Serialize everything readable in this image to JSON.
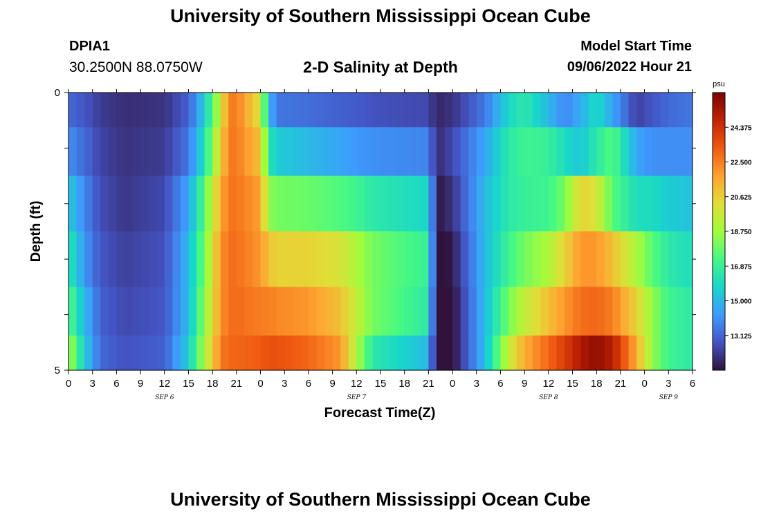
{
  "header": {
    "title": "University of Southern Mississippi Ocean Cube",
    "title_repeat": "University of Southern Mississippi Ocean Cube",
    "station": "DPIA1",
    "coords": "30.2500N  88.0750W",
    "subtitle": "2-D Salinity at Depth",
    "model_start_label": "Model Start Time",
    "model_start_value": "09/06/2022 Hour 21"
  },
  "chart_data": {
    "type": "heatmap",
    "title": "2-D Salinity at Depth",
    "xlabel": "Forecast Time(Z)",
    "ylabel": "Depth (ft)",
    "x_hours_from_start": [
      0,
      78
    ],
    "x_tick_labels": [
      "0",
      "3",
      "6",
      "9",
      "12",
      "15",
      "18",
      "21",
      "0",
      "3",
      "6",
      "9",
      "12",
      "15",
      "18",
      "21",
      "0",
      "3",
      "6",
      "9",
      "12",
      "15",
      "18",
      "21",
      "0",
      "3",
      "6"
    ],
    "date_labels": [
      {
        "text": "SEP 6",
        "hour": 12
      },
      {
        "text": "SEP 7",
        "hour": 36
      },
      {
        "text": "SEP 8",
        "hour": 60
      },
      {
        "text": "SEP 9",
        "hour": 75
      }
    ],
    "y_tick_labels": [
      "0",
      "5"
    ],
    "ylim": [
      0,
      5
    ],
    "depth_rows": [
      0.25,
      1.0,
      2.0,
      3.0,
      4.0,
      4.75
    ],
    "colorbar": {
      "unit": "psu",
      "min": 11.25,
      "max": 26.25,
      "tick_labels": [
        "24.375",
        "22.500",
        "20.625",
        "18.750",
        "16.875",
        "15.000",
        "13.125"
      ],
      "colors": [
        "#30123b",
        "#4454c4",
        "#3e9bfe",
        "#18d6cb",
        "#46f884",
        "#a2fc3c",
        "#e1dd37",
        "#fea331",
        "#ef5911",
        "#c22402",
        "#7a0403"
      ]
    },
    "key_hours": [
      0,
      2,
      4,
      7,
      12,
      15,
      17,
      19,
      20,
      21,
      24,
      25,
      26,
      30,
      34,
      36,
      38,
      45,
      46,
      48,
      52,
      55,
      57,
      60,
      62,
      64,
      66,
      68,
      71,
      73,
      75,
      78
    ],
    "salinity": [
      [
        13.2,
        12.8,
        12.2,
        11.9,
        12.0,
        13.0,
        15.5,
        19.5,
        22.5,
        22.6,
        20.0,
        15.0,
        13.5,
        13.3,
        13.0,
        12.9,
        12.7,
        12.5,
        11.7,
        12.0,
        13.5,
        15.8,
        16.5,
        15.0,
        13.8,
        14.7,
        16.0,
        14.5,
        12.3,
        12.8,
        13.2,
        13.5
      ],
      [
        14.0,
        13.2,
        12.4,
        12.0,
        12.2,
        13.5,
        16.2,
        20.5,
        22.6,
        22.6,
        21.0,
        16.5,
        15.5,
        15.0,
        14.5,
        14.2,
        14.0,
        13.8,
        11.8,
        12.5,
        14.5,
        16.5,
        17.0,
        16.8,
        16.0,
        15.3,
        16.5,
        17.5,
        14.5,
        14.0,
        14.0,
        14.0
      ],
      [
        15.5,
        13.8,
        12.6,
        12.1,
        12.5,
        14.5,
        17.5,
        21.5,
        22.7,
        22.7,
        21.8,
        18.5,
        18.0,
        17.8,
        17.4,
        17.0,
        16.5,
        15.8,
        11.3,
        12.0,
        15.0,
        16.5,
        16.8,
        17.0,
        18.0,
        20.5,
        20.0,
        17.5,
        16.0,
        16.0,
        15.5,
        15.2
      ],
      [
        16.5,
        14.2,
        12.8,
        12.3,
        12.7,
        15.0,
        18.0,
        22.0,
        22.8,
        22.8,
        22.0,
        21.0,
        20.5,
        20.5,
        20.0,
        19.0,
        18.0,
        16.8,
        10.8,
        11.5,
        15.0,
        17.0,
        18.0,
        19.0,
        20.5,
        22.0,
        22.0,
        21.0,
        19.0,
        17.5,
        16.5,
        16.0
      ],
      [
        17.5,
        15.0,
        13.0,
        12.5,
        12.8,
        15.0,
        18.5,
        22.0,
        22.8,
        22.9,
        22.5,
        22.5,
        22.3,
        22.0,
        21.0,
        19.5,
        18.0,
        16.5,
        10.5,
        11.2,
        15.0,
        18.0,
        19.5,
        21.0,
        22.0,
        22.8,
        23.0,
        22.5,
        20.5,
        18.5,
        17.0,
        16.5
      ],
      [
        19.0,
        15.5,
        13.2,
        12.7,
        13.0,
        15.5,
        19.0,
        22.5,
        23.0,
        23.0,
        23.2,
        23.5,
        23.5,
        23.0,
        22.0,
        19.0,
        16.5,
        15.0,
        10.8,
        11.2,
        15.0,
        19.5,
        21.5,
        23.0,
        24.0,
        25.2,
        25.8,
        25.0,
        21.5,
        18.5,
        17.0,
        16.5
      ]
    ]
  }
}
